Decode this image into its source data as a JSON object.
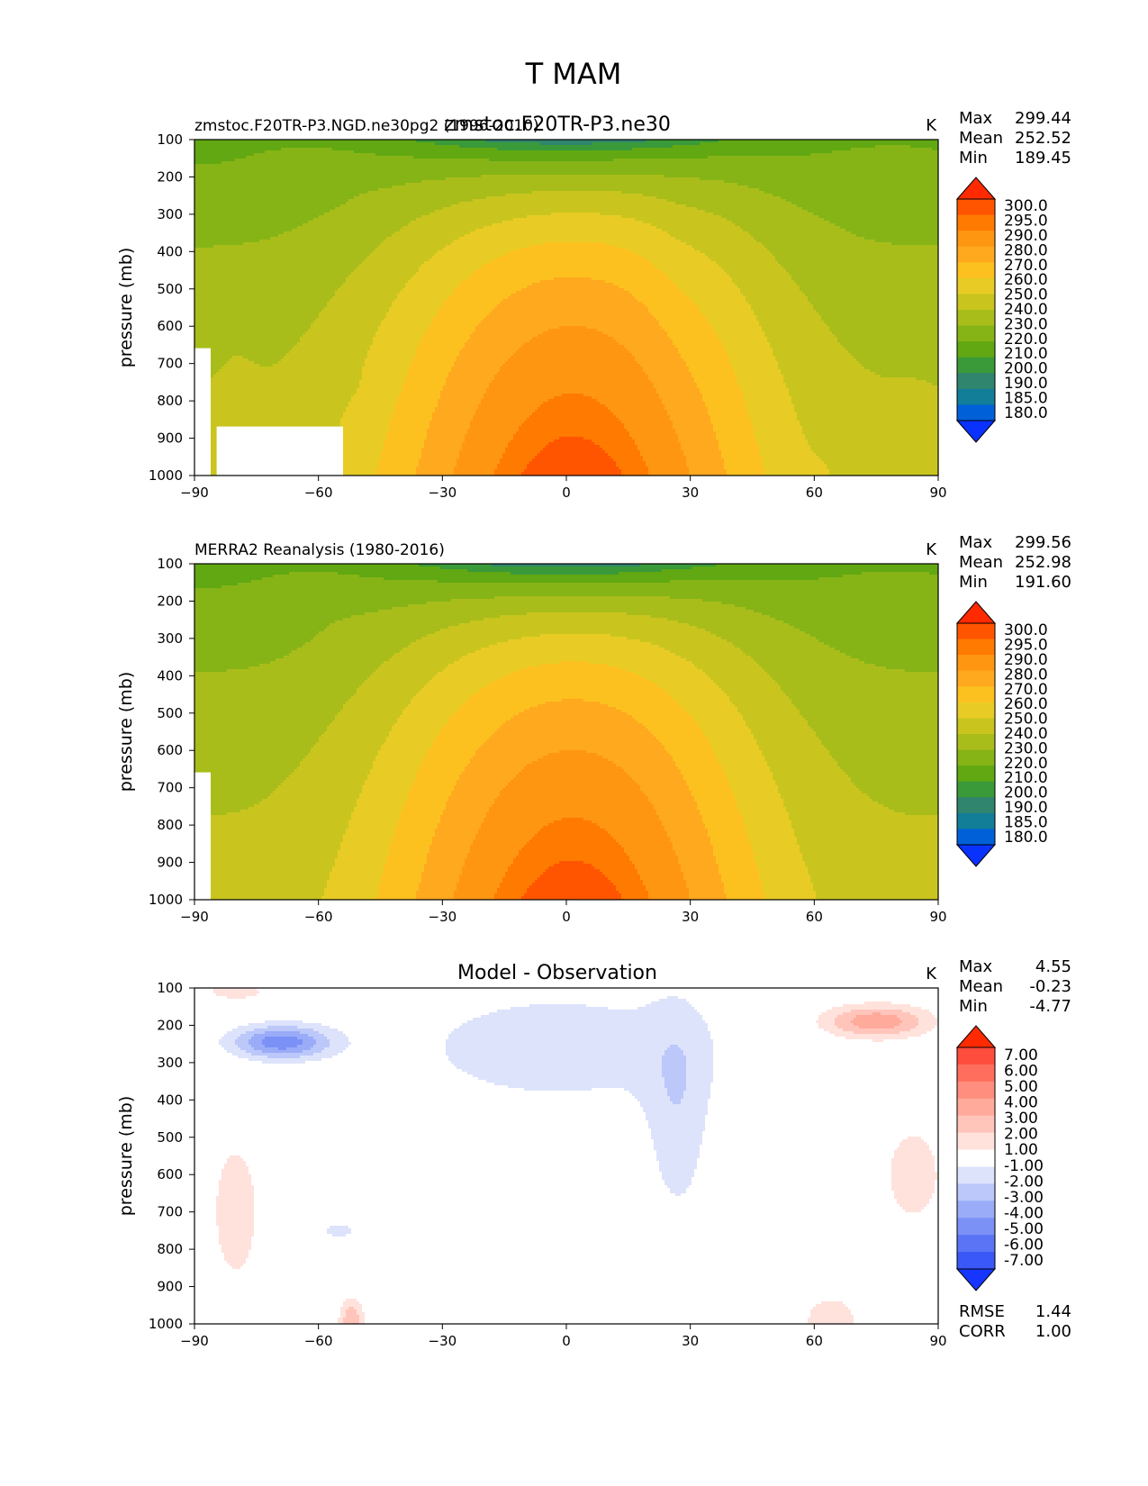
{
  "figure": {
    "title": "T MAM"
  },
  "chart_data": [
    {
      "type": "contour",
      "left_title": "zmstoc.F20TR-P3.NGD.ne30pg2 (1996-2010)",
      "center_title": "zmstoc.F20TR-P3.ne30",
      "units": "K",
      "xlabel": "",
      "ylabel": "pressure (mb)",
      "xlim": [
        -90,
        90
      ],
      "ylim": [
        1000,
        100
      ],
      "xticks": [
        "−90",
        "−60",
        "−30",
        "0",
        "30",
        "60",
        "90"
      ],
      "yticks": [
        "100",
        "200",
        "300",
        "400",
        "500",
        "600",
        "700",
        "800",
        "900",
        "1000"
      ],
      "stats": {
        "max_label": "Max",
        "max": "299.44",
        "mean_label": "Mean",
        "mean": "252.52",
        "min_label": "Min",
        "min": "189.45"
      },
      "colorbar": {
        "levels": [
          "300.0",
          "295.0",
          "290.0",
          "280.0",
          "270.0",
          "260.0",
          "250.0",
          "240.0",
          "230.0",
          "220.0",
          "210.0",
          "200.0",
          "190.0",
          "185.0",
          "180.0"
        ],
        "colors": [
          "#ff2a00",
          "#ff5500",
          "#ff7a00",
          "#ff9612",
          "#ffa91f",
          "#fcc11f",
          "#e8cc25",
          "#c9c51e",
          "#a9bd1a",
          "#86b416",
          "#61a812",
          "#3a9a3a",
          "#30856e",
          "#127e98",
          "#0060d8",
          "#0a32ff"
        ]
      },
      "field": {
        "lat": [
          -90,
          -60,
          -30,
          0,
          30,
          60,
          90
        ],
        "p": [
          100,
          300,
          500,
          700,
          900,
          1000
        ],
        "equator_surface_max": 299.44,
        "tropopause_min": 189.45
      }
    },
    {
      "type": "contour",
      "left_title": "MERRA2 Reanalysis (1980-2016)",
      "center_title": "",
      "units": "K",
      "xlabel": "",
      "ylabel": "pressure (mb)",
      "xlim": [
        -90,
        90
      ],
      "ylim": [
        1000,
        100
      ],
      "xticks": [
        "−90",
        "−60",
        "−30",
        "0",
        "30",
        "60",
        "90"
      ],
      "yticks": [
        "100",
        "200",
        "300",
        "400",
        "500",
        "600",
        "700",
        "800",
        "900",
        "1000"
      ],
      "stats": {
        "max_label": "Max",
        "max": "299.56",
        "mean_label": "Mean",
        "mean": "252.98",
        "min_label": "Min",
        "min": "191.60"
      },
      "colorbar": {
        "levels": [
          "300.0",
          "295.0",
          "290.0",
          "280.0",
          "270.0",
          "260.0",
          "250.0",
          "240.0",
          "230.0",
          "220.0",
          "210.0",
          "200.0",
          "190.0",
          "185.0",
          "180.0"
        ],
        "colors": [
          "#ff2a00",
          "#ff5500",
          "#ff7a00",
          "#ff9612",
          "#ffa91f",
          "#fcc11f",
          "#e8cc25",
          "#c9c51e",
          "#a9bd1a",
          "#86b416",
          "#61a812",
          "#3a9a3a",
          "#30856e",
          "#127e98",
          "#0060d8",
          "#0a32ff"
        ]
      }
    },
    {
      "type": "contour",
      "left_title": "",
      "center_title": "Model - Observation",
      "units": "K",
      "xlabel": "",
      "ylabel": "pressure (mb)",
      "xlim": [
        -90,
        90
      ],
      "ylim": [
        1000,
        100
      ],
      "xticks": [
        "−90",
        "−60",
        "−30",
        "0",
        "30",
        "60",
        "90"
      ],
      "yticks": [
        "100",
        "200",
        "300",
        "400",
        "500",
        "600",
        "700",
        "800",
        "900",
        "1000"
      ],
      "stats": {
        "max_label": "Max",
        "max": "4.55",
        "mean_label": "Mean",
        "mean": "-0.23",
        "min_label": "Min",
        "min": "-4.77"
      },
      "metrics": {
        "rmse_label": "RMSE",
        "rmse": "1.44",
        "corr_label": "CORR",
        "corr": "1.00"
      },
      "colorbar": {
        "levels": [
          "7.00",
          "6.00",
          "5.00",
          "4.00",
          "3.00",
          "2.00",
          "1.00",
          "-1.00",
          "-2.00",
          "-3.00",
          "-4.00",
          "-5.00",
          "-6.00",
          "-7.00"
        ],
        "colors": [
          "#ff2a00",
          "#ff4d3d",
          "#ff6e5c",
          "#ff8e7e",
          "#ffaa9b",
          "#ffc5bb",
          "#ffe2dc",
          "#ffffff",
          "#dde3fb",
          "#bcc8fa",
          "#9aacf8",
          "#7b91f6",
          "#5a74f5",
          "#3a57f8",
          "#1636ff"
        ]
      }
    }
  ]
}
